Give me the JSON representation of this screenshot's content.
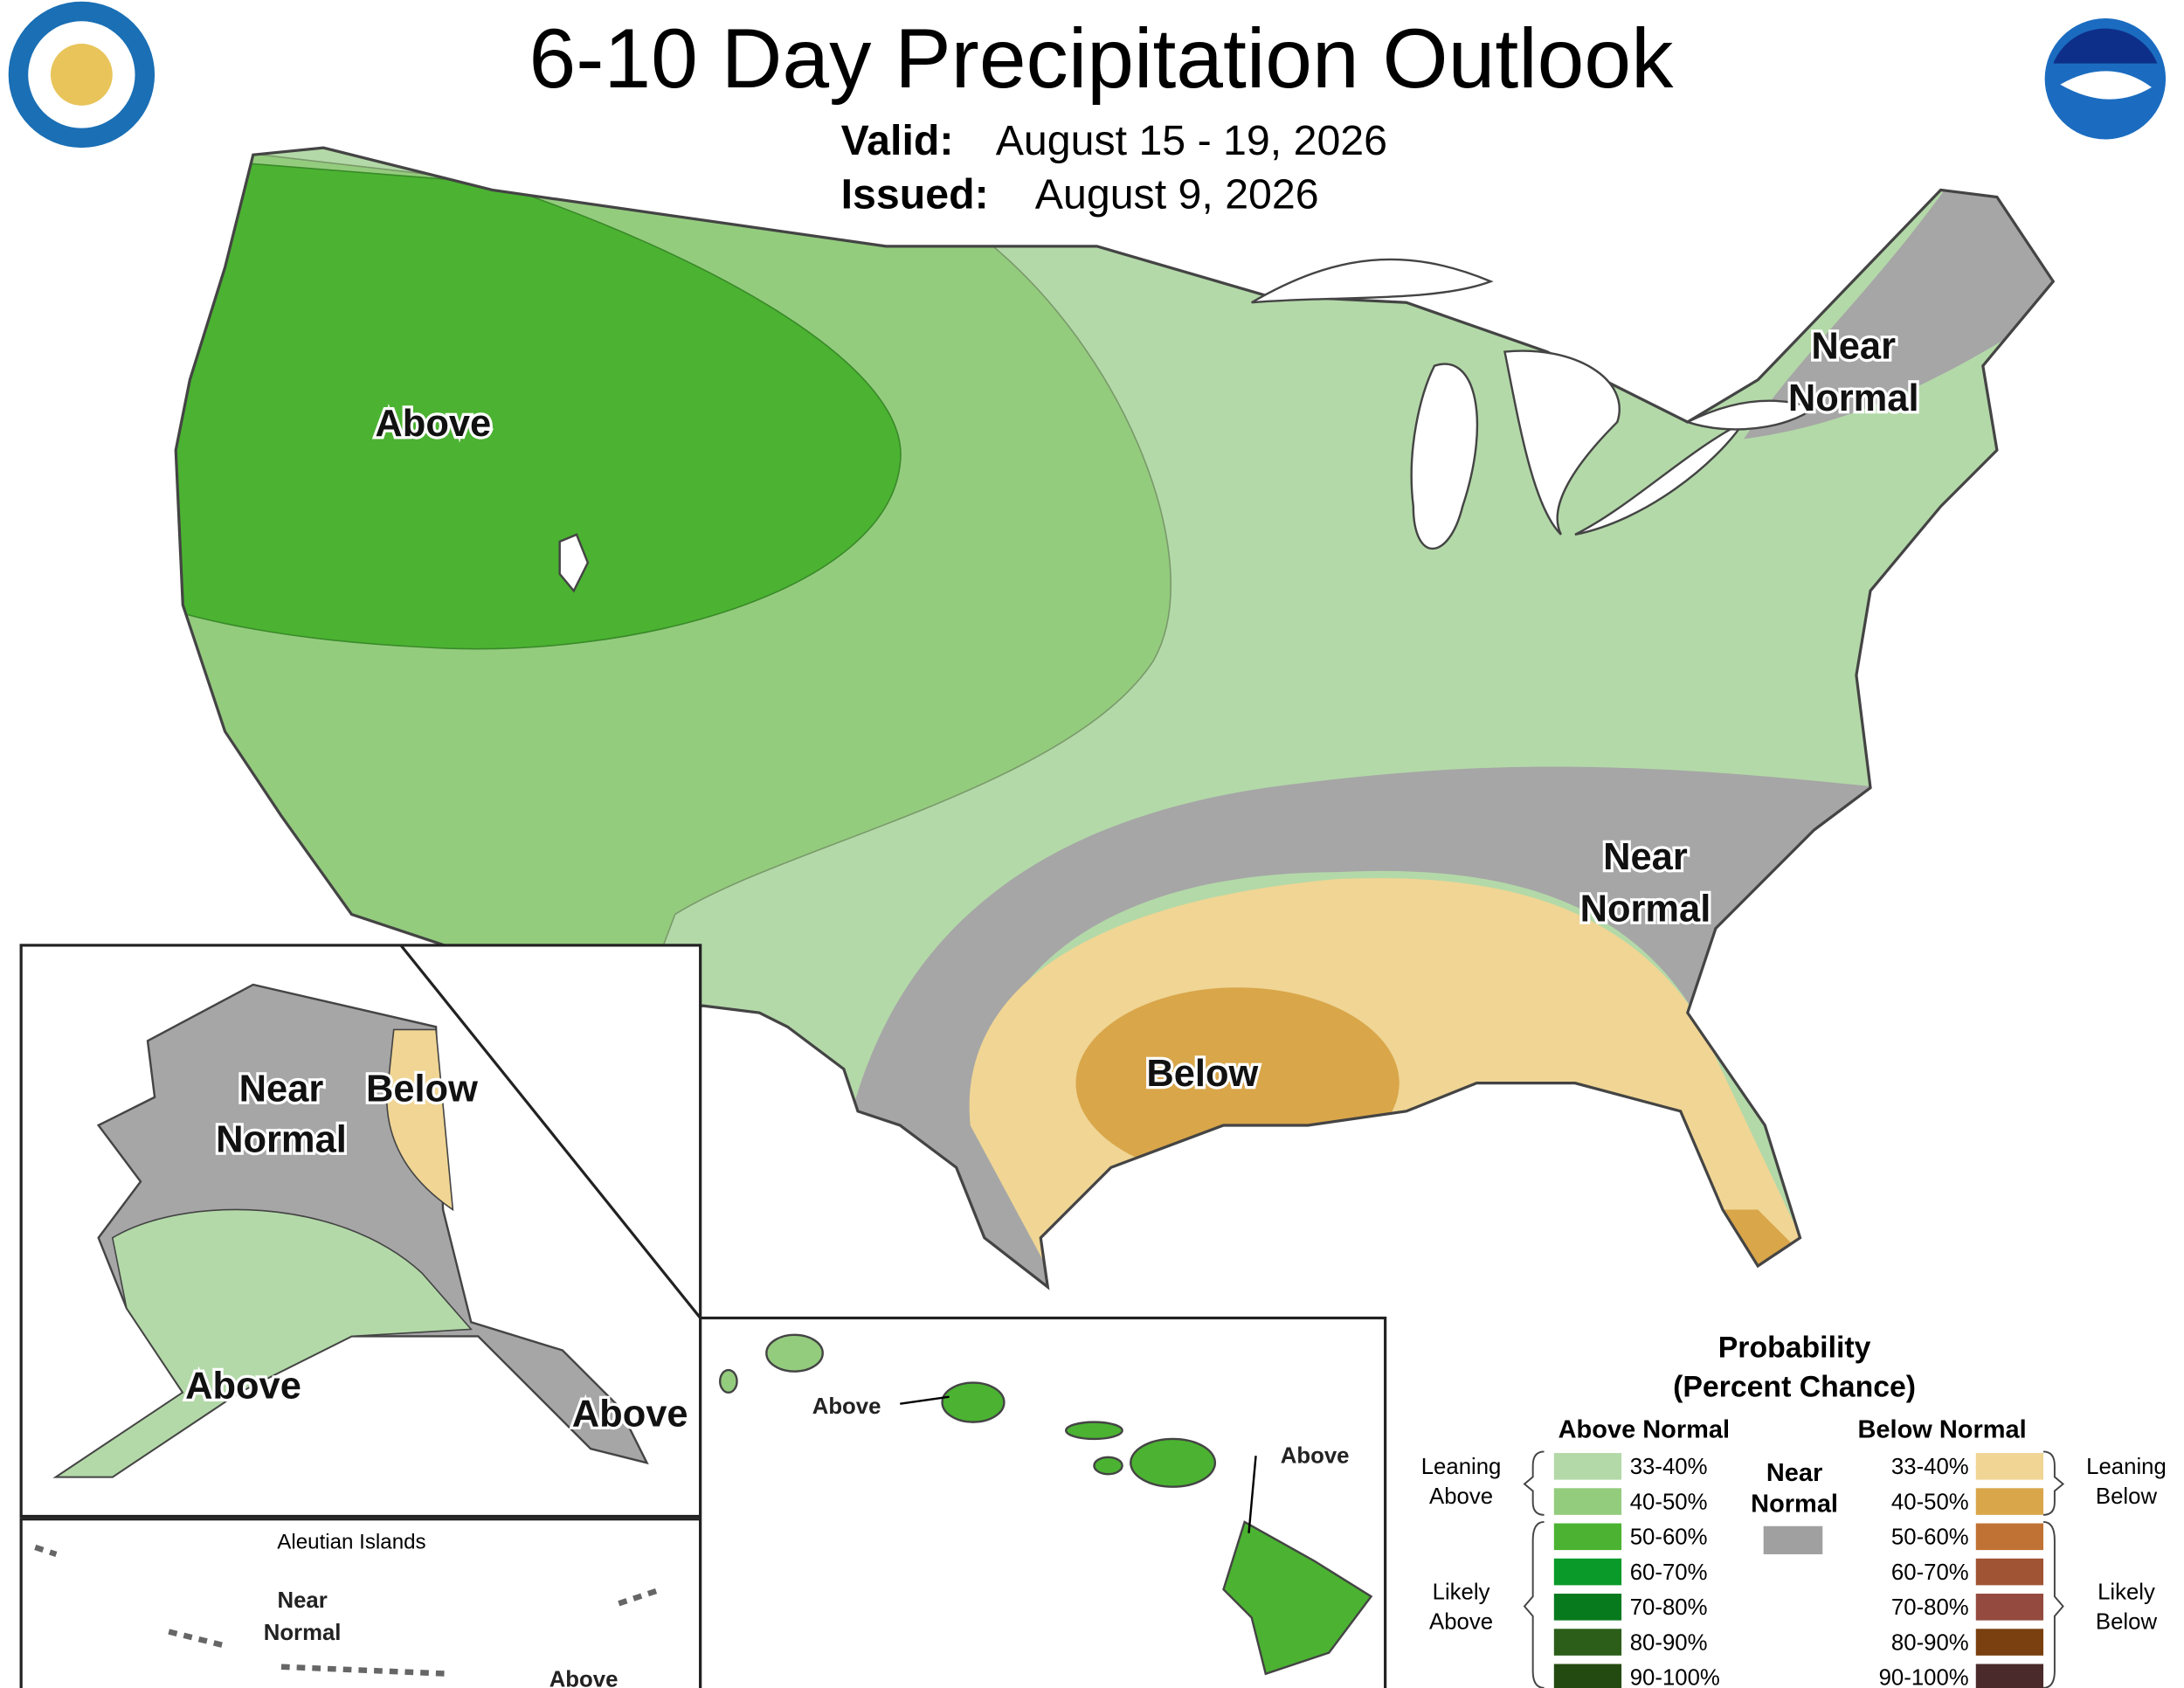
{
  "header": {
    "title": "6-10 Day Precipitation Outlook",
    "valid_label": "Valid:",
    "valid": "August 15 - 19, 2026",
    "issued_label": "Issued:",
    "issued": "August 9, 2026"
  },
  "conus": {
    "labels": [
      [
        "Above"
      ],
      [
        "Near",
        "Normal"
      ],
      [
        "Near",
        "Normal"
      ],
      [
        "Below"
      ]
    ]
  },
  "alaska": {
    "labels": [
      [
        "Near",
        "Normal"
      ],
      [
        "Below"
      ],
      [
        "Above"
      ],
      [
        "Above"
      ]
    ]
  },
  "aleutians": {
    "title": "Aleutian Islands",
    "labels": [
      [
        "Near",
        "Normal"
      ],
      [
        "Above"
      ]
    ]
  },
  "hawaii": {
    "labels": [
      [
        "Above"
      ],
      [
        "Above"
      ]
    ]
  },
  "legend": {
    "title": [
      "Probability",
      "(Percent Chance)"
    ],
    "above_normal": {
      "title": "Above Normal",
      "items": [
        {
          "range": "33-40%",
          "color": "#b3d9a8"
        },
        {
          "range": "40-50%",
          "color": "#94cc7e"
        },
        {
          "range": "50-60%",
          "color": "#4bb331"
        },
        {
          "range": "60-70%",
          "color": "#0a9a2a"
        },
        {
          "range": "70-80%",
          "color": "#087a1e"
        },
        {
          "range": "80-90%",
          "color": "#2c5e1a"
        },
        {
          "range": "90-100%",
          "color": "#234a10"
        }
      ]
    },
    "below_normal": {
      "title": "Below Normal",
      "items": [
        {
          "range": "33-40%",
          "color": "#f0d594"
        },
        {
          "range": "40-50%",
          "color": "#d9a64a"
        },
        {
          "range": "50-60%",
          "color": "#c07234"
        },
        {
          "range": "60-70%",
          "color": "#a05434"
        },
        {
          "range": "70-80%",
          "color": "#944a3e"
        },
        {
          "range": "80-90%",
          "color": "#7a4010"
        },
        {
          "range": "90-100%",
          "color": "#4a2a2a"
        }
      ]
    },
    "near_normal": {
      "title": [
        "Near",
        "Normal"
      ],
      "color": "#a0a0a0"
    },
    "leaning_above": [
      "Leaning",
      "Above"
    ],
    "likely_above": [
      "Likely",
      "Above"
    ],
    "leaning_below": [
      "Leaning",
      "Below"
    ],
    "likely_below": [
      "Likely",
      "Below"
    ]
  }
}
